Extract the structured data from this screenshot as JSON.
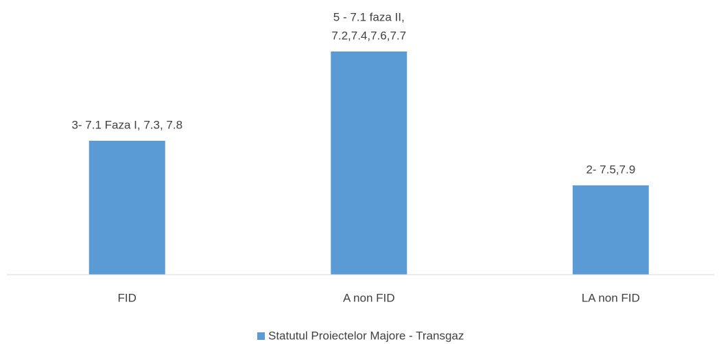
{
  "chart_data": {
    "type": "bar",
    "categories": [
      "FID",
      "A non FID",
      "LA non FID"
    ],
    "series": [
      {
        "name": "Statutul Proiectelor Majore - Transgaz",
        "color": "#5b9bd5",
        "values": [
          3,
          5,
          2
        ],
        "value_labels": [
          [
            "3- 7.1 Faza I, 7.3, 7.8"
          ],
          [
            "5 - 7.1 faza II,",
            "7.2,7.4,7.6,7.7"
          ],
          [
            "2- 7.5,7.9"
          ]
        ]
      }
    ],
    "ylim": [
      0,
      6
    ],
    "legend": "bottom"
  }
}
